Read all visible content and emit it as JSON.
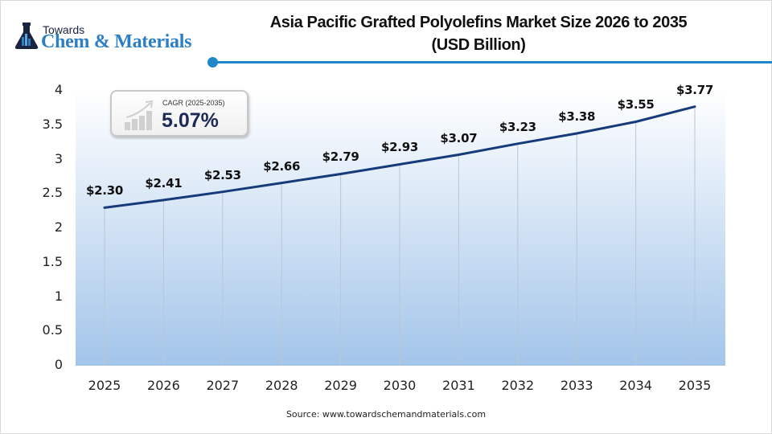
{
  "brand": {
    "top_line": "Towards",
    "main_line": "Chem & Materials"
  },
  "header": {
    "title_line1": "Asia Pacific Grafted Polyolefins Market Size 2026 to 2035",
    "title_line2": "(USD Billion)",
    "accent_color": "#1f86c8"
  },
  "cagr": {
    "label": "CAGR (2025-2035)",
    "value": "5.07%"
  },
  "y_axis": {
    "ticks": [
      "4",
      "3.5",
      "3",
      "2.5",
      "2",
      "1.5",
      "1",
      "0.5",
      "0"
    ]
  },
  "x_axis": {
    "ticks": [
      "2025",
      "2026",
      "2027",
      "2028",
      "2029",
      "2030",
      "2031",
      "2032",
      "2033",
      "2034",
      "2035"
    ]
  },
  "data_labels": [
    "$2.30",
    "$2.41",
    "$2.53",
    "$2.66",
    "$2.79",
    "$2.93",
    "$3.07",
    "$3.23",
    "$3.38",
    "$3.55",
    "$3.77"
  ],
  "source": "Source: www.towardschemandmaterials.com",
  "colors": {
    "line": "#163b7a",
    "area_bottom": "#a3c5ea",
    "area_top": "#ffffff",
    "dropline": "#b9c6d6"
  },
  "chart_data": {
    "type": "area",
    "title": "Asia Pacific Grafted Polyolefins Market Size 2026 to 2035 (USD Billion)",
    "xlabel": "",
    "ylabel": "",
    "categories": [
      "2025",
      "2026",
      "2027",
      "2028",
      "2029",
      "2030",
      "2031",
      "2032",
      "2033",
      "2034",
      "2035"
    ],
    "series": [
      {
        "name": "Market Size (USD Billion)",
        "values": [
          2.3,
          2.41,
          2.53,
          2.66,
          2.79,
          2.93,
          3.07,
          3.23,
          3.38,
          3.55,
          3.77
        ]
      }
    ],
    "ylim": [
      0,
      4
    ],
    "yticks": [
      0,
      0.5,
      1,
      1.5,
      2,
      2.5,
      3,
      3.5,
      4
    ],
    "grid": false,
    "legend": "none",
    "annotations": [
      "CAGR (2025-2035) 5.07%"
    ],
    "source": "www.towardschemandmaterials.com"
  }
}
